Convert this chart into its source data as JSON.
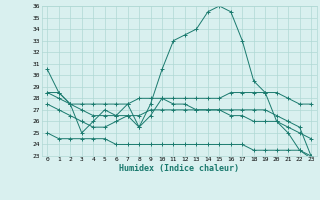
{
  "xlabel": "Humidex (Indice chaleur)",
  "x": [
    0,
    1,
    2,
    3,
    4,
    5,
    6,
    7,
    8,
    9,
    10,
    11,
    12,
    13,
    14,
    15,
    16,
    17,
    18,
    19,
    20,
    21,
    22,
    23
  ],
  "series": [
    [
      30.5,
      28.5,
      27.5,
      25.0,
      26.0,
      27.0,
      26.5,
      27.5,
      25.5,
      27.5,
      30.5,
      33.0,
      33.5,
      34.0,
      35.5,
      36.0,
      35.5,
      33.0,
      29.5,
      28.5,
      26.0,
      25.0,
      23.5,
      22.8
    ],
    [
      28.5,
      28.5,
      27.5,
      27.5,
      27.5,
      27.5,
      27.5,
      27.5,
      28.0,
      28.0,
      28.0,
      28.0,
      28.0,
      28.0,
      28.0,
      28.0,
      28.5,
      28.5,
      28.5,
      28.5,
      28.5,
      28.0,
      27.5,
      27.5
    ],
    [
      28.5,
      28.0,
      27.5,
      27.0,
      26.5,
      26.5,
      26.5,
      26.5,
      26.5,
      27.0,
      27.0,
      27.0,
      27.0,
      27.0,
      27.0,
      27.0,
      26.5,
      26.5,
      26.0,
      26.0,
      26.0,
      25.5,
      25.0,
      24.5
    ],
    [
      27.5,
      27.0,
      26.5,
      26.0,
      25.5,
      25.5,
      26.0,
      26.5,
      25.5,
      26.5,
      28.0,
      27.5,
      27.5,
      27.0,
      27.0,
      27.0,
      27.0,
      27.0,
      27.0,
      27.0,
      26.5,
      26.0,
      25.5,
      23.0
    ],
    [
      25.0,
      24.5,
      24.5,
      24.5,
      24.5,
      24.5,
      24.0,
      24.0,
      24.0,
      24.0,
      24.0,
      24.0,
      24.0,
      24.0,
      24.0,
      24.0,
      24.0,
      24.0,
      23.5,
      23.5,
      23.5,
      23.5,
      23.5,
      23.0
    ]
  ],
  "color": "#1a7a6e",
  "bg_color": "#d9f0ef",
  "grid_color": "#b0d8d4",
  "ylim": [
    23,
    36
  ],
  "yticks": [
    23,
    24,
    25,
    26,
    27,
    28,
    29,
    30,
    31,
    32,
    33,
    34,
    35,
    36
  ],
  "xticks": [
    0,
    1,
    2,
    3,
    4,
    5,
    6,
    7,
    8,
    9,
    10,
    11,
    12,
    13,
    14,
    15,
    16,
    17,
    18,
    19,
    20,
    21,
    22,
    23
  ]
}
